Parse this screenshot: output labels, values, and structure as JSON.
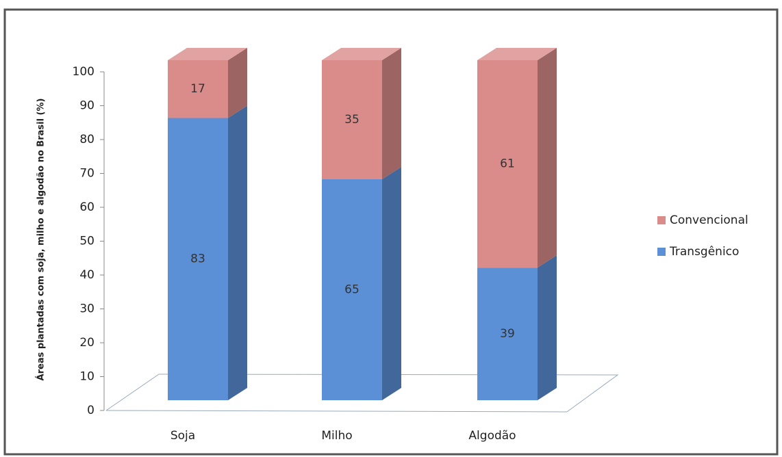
{
  "chart_data": {
    "type": "bar",
    "stacked": true,
    "ylabel": "Áreas plantadas com soja, milho e algodão no Brasil (%)",
    "categories": [
      "Soja",
      "Milho",
      "Algodão"
    ],
    "series": [
      {
        "name": "Transgênico",
        "color": "#5b8fd6",
        "values": [
          83,
          65,
          39
        ]
      },
      {
        "name": "Convencional",
        "color": "#d98c8a",
        "values": [
          17,
          35,
          61
        ]
      }
    ],
    "ylim": [
      0,
      100
    ],
    "yticks": [
      0,
      10,
      20,
      30,
      40,
      50,
      60,
      70,
      80,
      90,
      100
    ],
    "legend": "right"
  }
}
